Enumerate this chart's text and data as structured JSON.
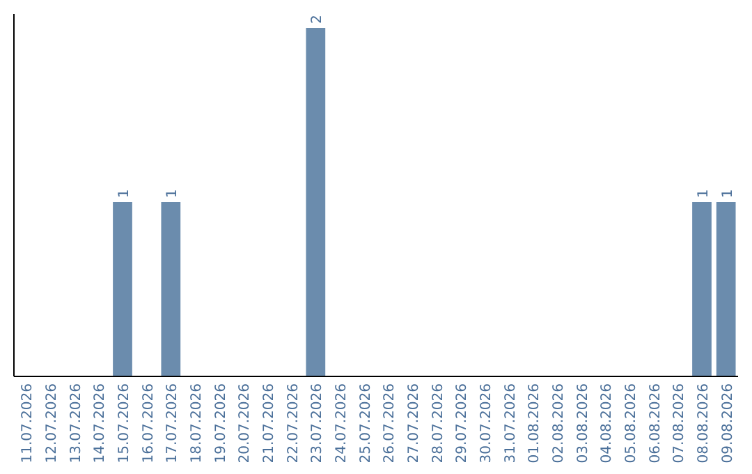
{
  "chart_data": {
    "type": "bar",
    "categories": [
      "11.07.2026",
      "12.07.2026",
      "13.07.2026",
      "14.07.2026",
      "15.07.2026",
      "16.07.2026",
      "17.07.2026",
      "18.07.2026",
      "19.07.2026",
      "20.07.2026",
      "21.07.2026",
      "22.07.2026",
      "23.07.2026",
      "24.07.2026",
      "25.07.2026",
      "26.07.2026",
      "27.07.2026",
      "28.07.2026",
      "29.07.2026",
      "30.07.2026",
      "31.07.2026",
      "01.08.2026",
      "02.08.2026",
      "03.08.2026",
      "04.08.2026",
      "05.08.2026",
      "06.08.2026",
      "07.08.2026",
      "08.08.2026",
      "09.08.2026"
    ],
    "values": [
      0,
      0,
      0,
      0,
      1,
      0,
      1,
      0,
      0,
      0,
      0,
      0,
      2,
      0,
      0,
      0,
      0,
      0,
      0,
      0,
      0,
      0,
      0,
      0,
      0,
      0,
      0,
      0,
      1,
      1
    ],
    "value_labels": [
      null,
      null,
      null,
      null,
      "1",
      null,
      "1",
      null,
      null,
      null,
      null,
      null,
      "2",
      null,
      null,
      null,
      null,
      null,
      null,
      null,
      null,
      null,
      null,
      null,
      null,
      null,
      null,
      null,
      "1",
      "1"
    ],
    "color": "#6b8cad",
    "ylim": [
      0,
      2
    ],
    "tick_labels": "x"
  }
}
